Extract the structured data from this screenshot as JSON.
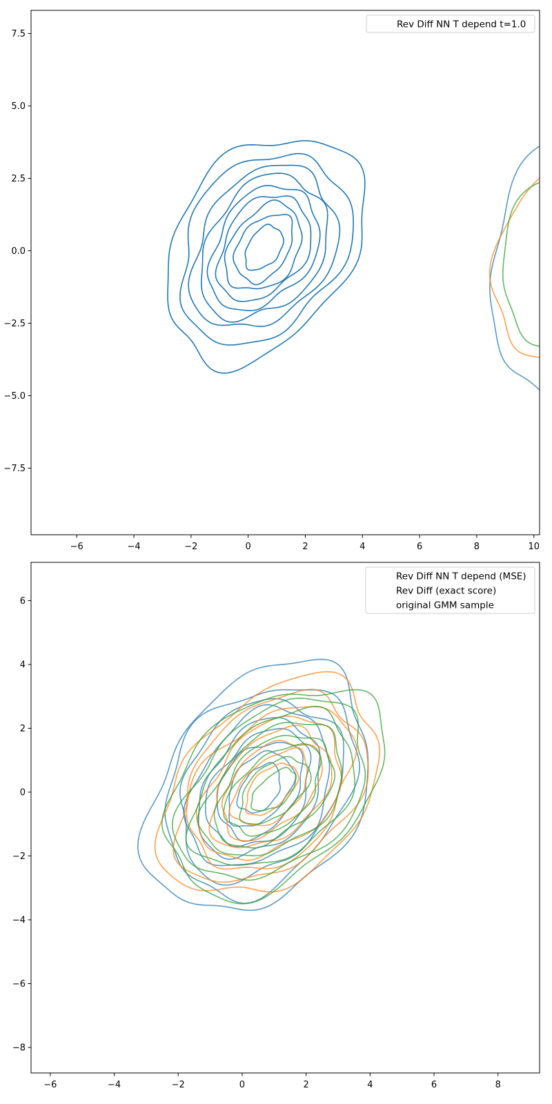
{
  "chart_data": [
    {
      "type": "contour",
      "title": "",
      "xlabel": "",
      "ylabel": "",
      "xlim": [
        -7.6,
        10.2
      ],
      "ylim": [
        -9.8,
        8.3
      ],
      "xticks": [
        -6,
        -4,
        -2,
        0,
        2,
        4,
        6,
        8,
        10
      ],
      "yticks": [
        -7.5,
        -5.0,
        -2.5,
        0.0,
        2.5,
        5.0,
        7.5
      ],
      "xtick_labels": [
        "−6",
        "−4",
        "−2",
        "0",
        "2",
        "4",
        "6",
        "8",
        "10"
      ],
      "ytick_labels": [
        "−7.5",
        "−5.0",
        "−2.5",
        "0.0",
        "2.5",
        "5.0",
        "7.5"
      ],
      "legend": {
        "position": "upper right",
        "entries": [
          "Rev Diff NN T depend t=1.0"
        ]
      },
      "series": [
        {
          "name": "Rev Diff NN T depend t=1.0",
          "color": "#1f77b4",
          "opacity": 1.0,
          "center": [
            0.55,
            0.1
          ],
          "levels": [
            {
              "rx": 3.0,
              "ry": 4.3,
              "rot": -35
            },
            {
              "rx": 2.65,
              "ry": 3.55,
              "rot": -35
            },
            {
              "rx": 2.25,
              "ry": 3.05,
              "rot": -35
            },
            {
              "rx": 1.95,
              "ry": 2.7,
              "rot": -35
            },
            {
              "rx": 1.65,
              "ry": 2.35,
              "rot": -35
            },
            {
              "rx": 1.4,
              "ry": 2.0,
              "rot": -35
            },
            {
              "rx": 1.15,
              "ry": 1.65,
              "rot": -35
            },
            {
              "rx": 0.85,
              "ry": 1.3,
              "rot": -35
            },
            {
              "rx": 0.55,
              "ry": 0.85,
              "rot": -35
            }
          ]
        },
        {
          "name": "",
          "color": "#1f77b4",
          "opacity": 0.75,
          "center": [
            11.6,
            0.0
          ],
          "levels": [
            {
              "rx": 2.9,
              "ry": 4.9,
              "rot": -20
            }
          ]
        },
        {
          "name": "",
          "color": "#ff7f0e",
          "opacity": 0.75,
          "center": [
            11.5,
            0.0
          ],
          "levels": [
            {
              "rx": 2.6,
              "ry": 4.1,
              "rot": -20
            }
          ]
        },
        {
          "name": "",
          "color": "#2ca02c",
          "opacity": 0.75,
          "center": [
            11.6,
            0.0
          ],
          "levels": [
            {
              "rx": 2.5,
              "ry": 3.7,
              "rot": -20
            }
          ]
        }
      ]
    },
    {
      "type": "contour",
      "title": "",
      "xlabel": "",
      "ylabel": "",
      "xlim": [
        -6.6,
        9.3
      ],
      "ylim": [
        -8.8,
        7.2
      ],
      "xticks": [
        -6,
        -4,
        -2,
        0,
        2,
        4,
        6,
        8
      ],
      "yticks": [
        -8,
        -6,
        -4,
        -2,
        0,
        2,
        4,
        6
      ],
      "xtick_labels": [
        "−6",
        "−4",
        "−2",
        "0",
        "2",
        "4",
        "6",
        "8"
      ],
      "ytick_labels": [
        "−8",
        "−6",
        "−4",
        "−2",
        "0",
        "2",
        "4",
        "6"
      ],
      "legend": {
        "position": "upper right",
        "entries": [
          "Rev Diff NN T depend (MSE)",
          "Rev Diff (exact score)",
          "original GMM sample"
        ]
      },
      "series": [
        {
          "name": "Rev Diff NN T depend (MSE)",
          "color": "#1f77b4",
          "opacity": 0.75,
          "center": [
            0.55,
            0.1
          ],
          "levels": [
            {
              "rx": 3.0,
              "ry": 4.3,
              "rot": -35
            },
            {
              "rx": 2.65,
              "ry": 3.55,
              "rot": -35
            },
            {
              "rx": 2.25,
              "ry": 3.05,
              "rot": -35
            },
            {
              "rx": 1.95,
              "ry": 2.7,
              "rot": -35
            },
            {
              "rx": 1.65,
              "ry": 2.35,
              "rot": -35
            },
            {
              "rx": 1.4,
              "ry": 2.0,
              "rot": -35
            },
            {
              "rx": 1.15,
              "ry": 1.65,
              "rot": -35
            },
            {
              "rx": 0.85,
              "ry": 1.3,
              "rot": -35
            },
            {
              "rx": 0.55,
              "ry": 0.85,
              "rot": -35
            }
          ]
        },
        {
          "name": "Rev Diff (exact score)",
          "color": "#ff7f0e",
          "opacity": 0.75,
          "center": [
            0.9,
            0.1
          ],
          "levels": [
            {
              "rx": 2.7,
              "ry": 4.0,
              "rot": -45
            },
            {
              "rx": 2.35,
              "ry": 3.45,
              "rot": -45
            },
            {
              "rx": 2.05,
              "ry": 3.0,
              "rot": -45
            },
            {
              "rx": 1.75,
              "ry": 2.6,
              "rot": -45
            },
            {
              "rx": 1.45,
              "ry": 2.2,
              "rot": -45
            },
            {
              "rx": 1.15,
              "ry": 1.85,
              "rot": -45
            },
            {
              "rx": 0.85,
              "ry": 1.45,
              "rot": -45
            },
            {
              "rx": 0.55,
              "ry": 1.0,
              "rot": -45
            }
          ]
        },
        {
          "name": "original GMM sample",
          "color": "#2ca02c",
          "opacity": 0.75,
          "center": [
            1.0,
            0.05
          ],
          "levels": [
            {
              "rx": 2.6,
              "ry": 3.95,
              "rot": -48
            },
            {
              "rx": 2.25,
              "ry": 3.4,
              "rot": -48
            },
            {
              "rx": 1.95,
              "ry": 2.95,
              "rot": -48
            },
            {
              "rx": 1.65,
              "ry": 2.55,
              "rot": -48
            },
            {
              "rx": 1.35,
              "ry": 2.15,
              "rot": -48
            },
            {
              "rx": 1.05,
              "ry": 1.75,
              "rot": -48
            },
            {
              "rx": 0.75,
              "ry": 1.3,
              "rot": -48
            },
            {
              "rx": 0.45,
              "ry": 0.85,
              "rot": -48
            }
          ]
        }
      ]
    }
  ]
}
